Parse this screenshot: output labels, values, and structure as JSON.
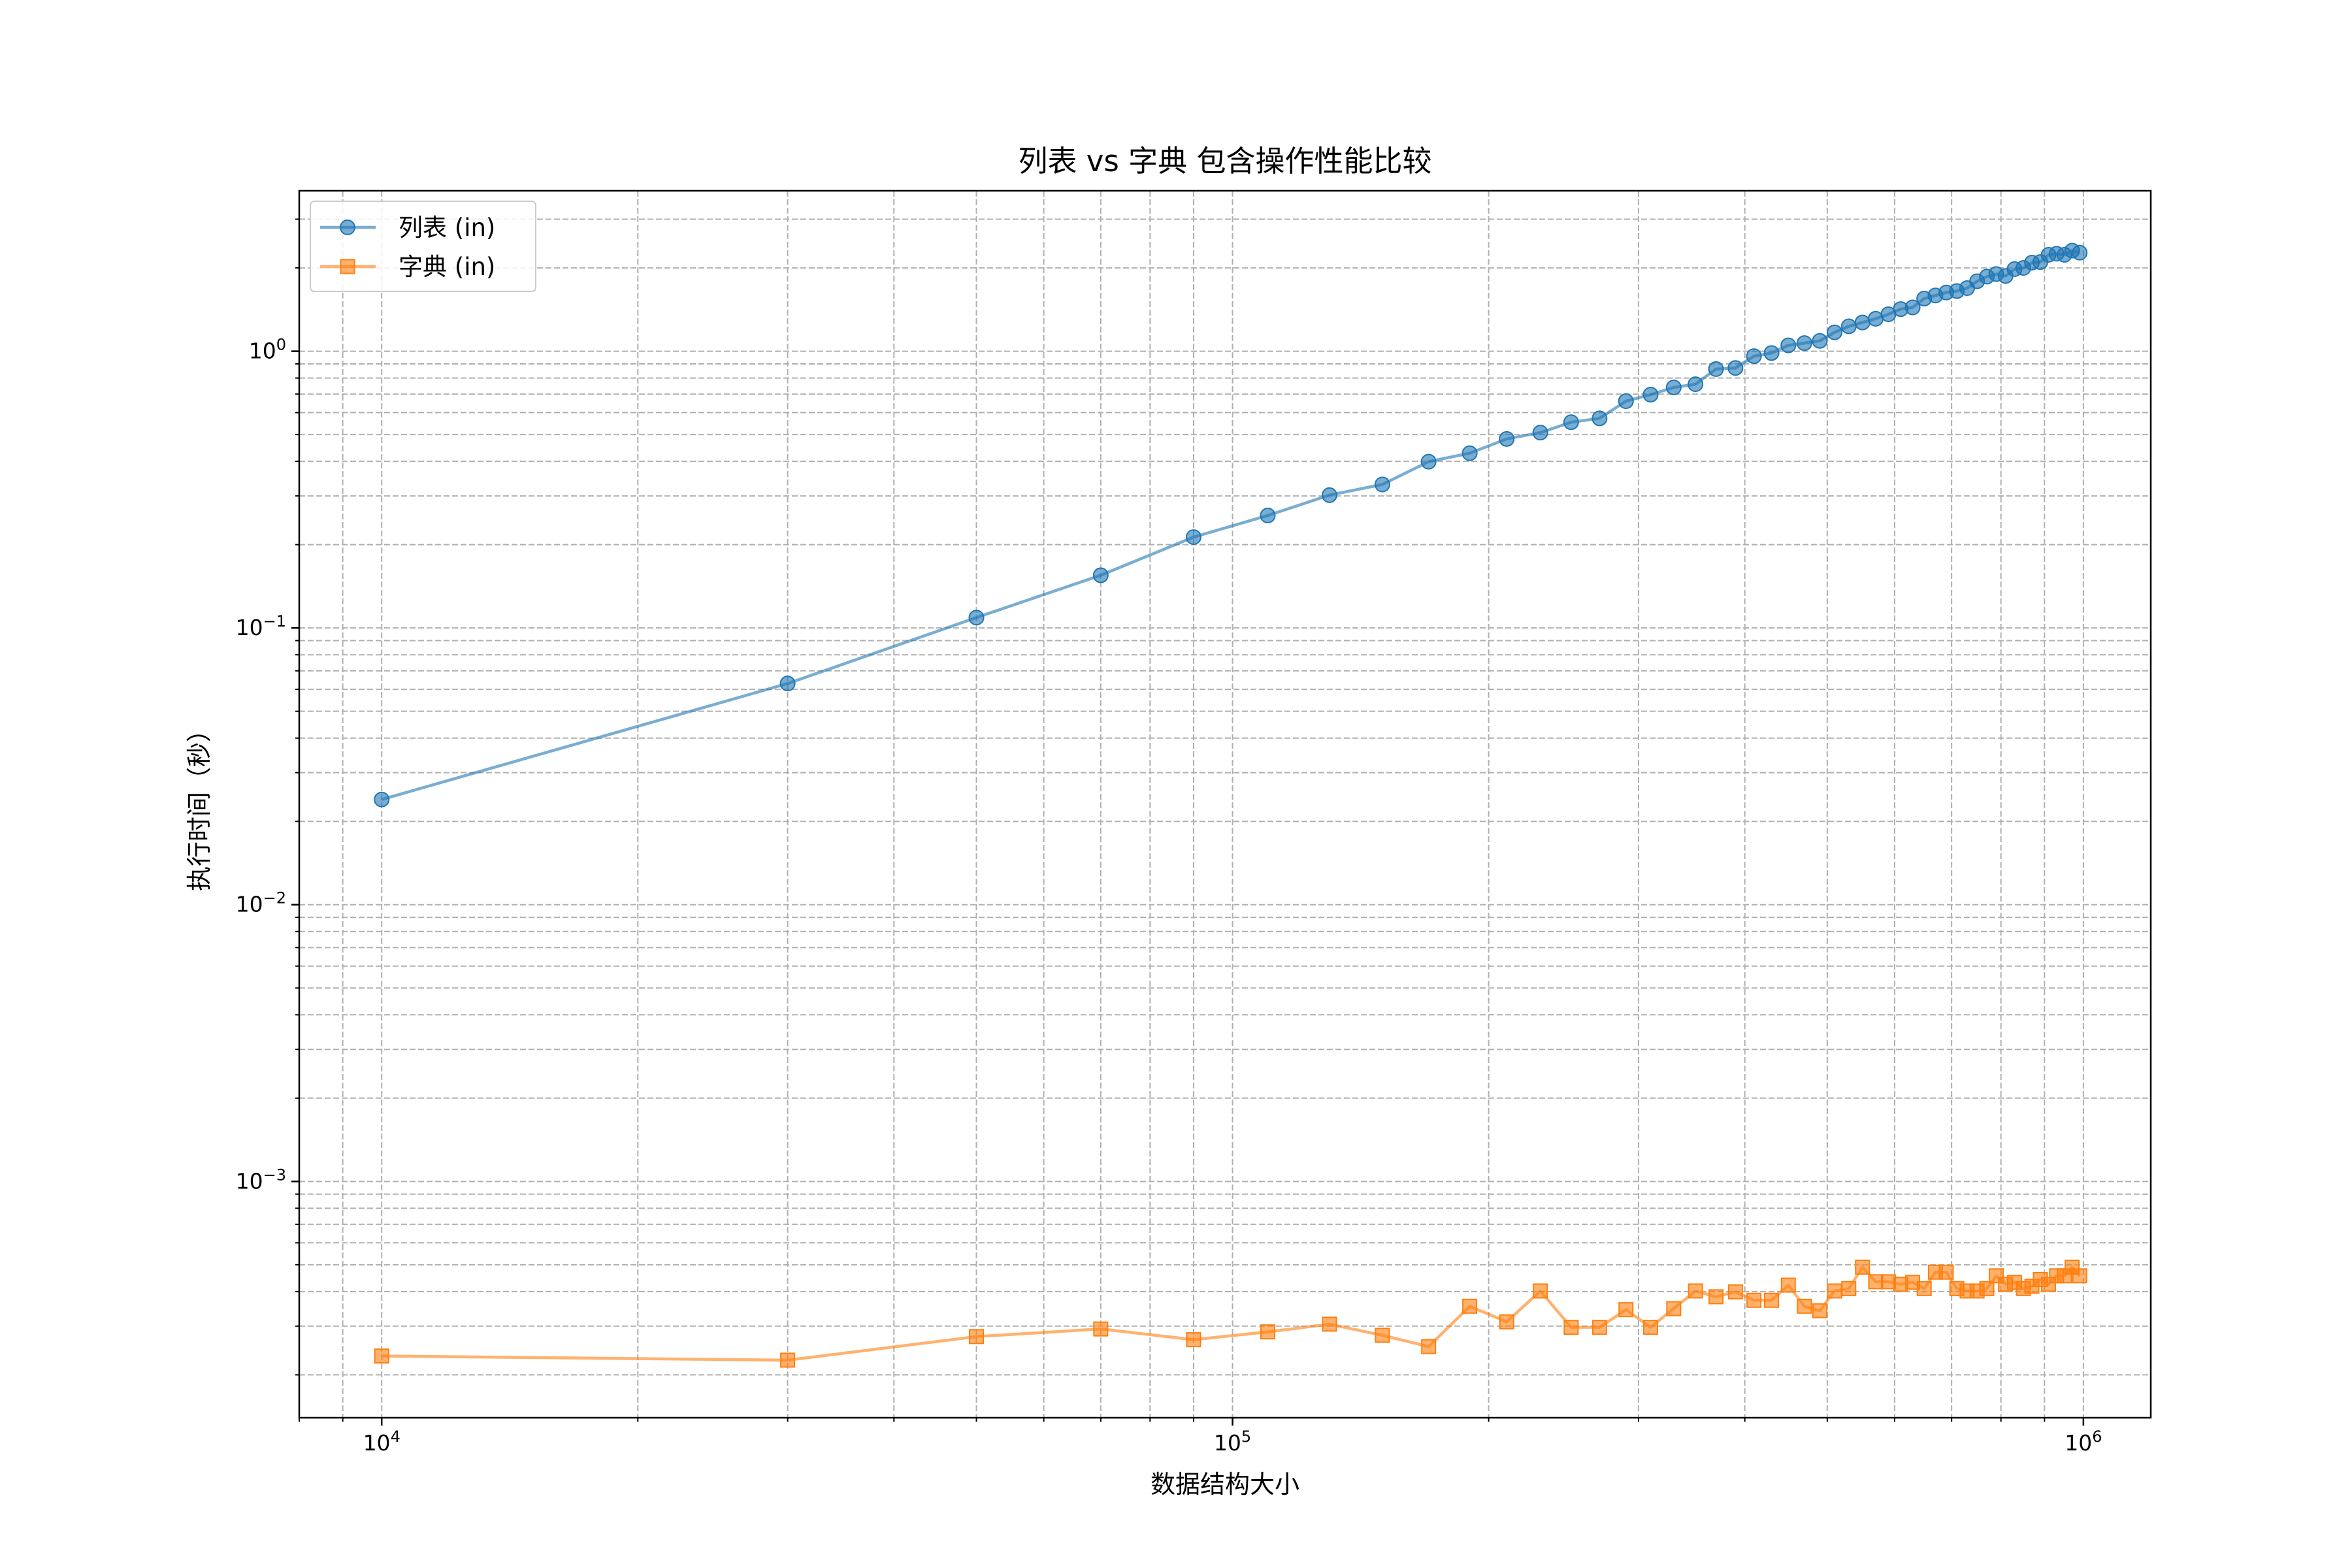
{
  "chart_data": {
    "type": "line",
    "title": "列表 vs 字典 包含操作性能比较",
    "xlabel": "数据结构大小",
    "ylabel": "执行时间（秒）",
    "xscale": "log",
    "yscale": "log",
    "xlim": [
      8000,
      1200000
    ],
    "ylim": [
      0.00014,
      3.8
    ],
    "grid": true,
    "grid_style": "dashed",
    "legend_position": "top-left",
    "x_major_ticks": [
      {
        "value": 10000,
        "base": "10",
        "exp": "4"
      },
      {
        "value": 100000,
        "base": "10",
        "exp": "5"
      },
      {
        "value": 1000000,
        "base": "10",
        "exp": "6"
      }
    ],
    "y_major_ticks": [
      {
        "value": 1,
        "base": "10",
        "exp": "0"
      },
      {
        "value": 0.1,
        "base": "10",
        "exp": "−1"
      },
      {
        "value": 0.01,
        "base": "10",
        "exp": "−2"
      },
      {
        "value": 0.001,
        "base": "10",
        "exp": "−3"
      }
    ],
    "x": [
      10000,
      30000,
      50000,
      70000,
      90000,
      110000,
      130000,
      150000,
      170000,
      190000,
      210000,
      230000,
      250000,
      270000,
      290000,
      310000,
      330000,
      350000,
      370000,
      390000,
      410000,
      430000,
      450000,
      470000,
      490000,
      510000,
      530000,
      550000,
      570000,
      590000,
      610000,
      630000,
      650000,
      670000,
      690000,
      710000,
      730000,
      750000,
      770000,
      790000,
      810000,
      830000,
      850000,
      870000,
      890000,
      910000,
      930000,
      950000,
      970000,
      990000
    ],
    "series": [
      {
        "name": "列表 (in)",
        "color": "#1f77b4",
        "marker": "circle",
        "values": [
          0.024,
          0.063,
          0.109,
          0.155,
          0.213,
          0.255,
          0.302,
          0.33,
          0.399,
          0.428,
          0.482,
          0.508,
          0.554,
          0.572,
          0.66,
          0.697,
          0.74,
          0.76,
          0.862,
          0.87,
          0.96,
          0.985,
          1.05,
          1.07,
          1.09,
          1.17,
          1.23,
          1.27,
          1.31,
          1.36,
          1.42,
          1.44,
          1.55,
          1.59,
          1.63,
          1.65,
          1.69,
          1.79,
          1.86,
          1.9,
          1.87,
          1.98,
          2.0,
          2.09,
          2.1,
          2.23,
          2.25,
          2.23,
          2.31,
          2.27
        ]
      },
      {
        "name": "字典 (in)",
        "color": "#ff7f0e",
        "marker": "square",
        "values": [
          0.000234,
          0.000226,
          0.000275,
          0.000293,
          0.000268,
          0.000286,
          0.000305,
          0.000278,
          0.000253,
          0.000354,
          0.000311,
          0.000402,
          0.000297,
          0.000297,
          0.000344,
          0.000297,
          0.000347,
          0.000402,
          0.000383,
          0.000399,
          0.000372,
          0.000372,
          0.000422,
          0.000354,
          0.000341,
          0.000402,
          0.00041,
          0.00049,
          0.000434,
          0.000434,
          0.000425,
          0.000432,
          0.00041,
          0.00047,
          0.00047,
          0.00041,
          0.000402,
          0.000402,
          0.00041,
          0.000456,
          0.000425,
          0.000432,
          0.00041,
          0.000418,
          0.000442,
          0.000425,
          0.000456,
          0.000456,
          0.00049,
          0.000456
        ]
      }
    ]
  }
}
